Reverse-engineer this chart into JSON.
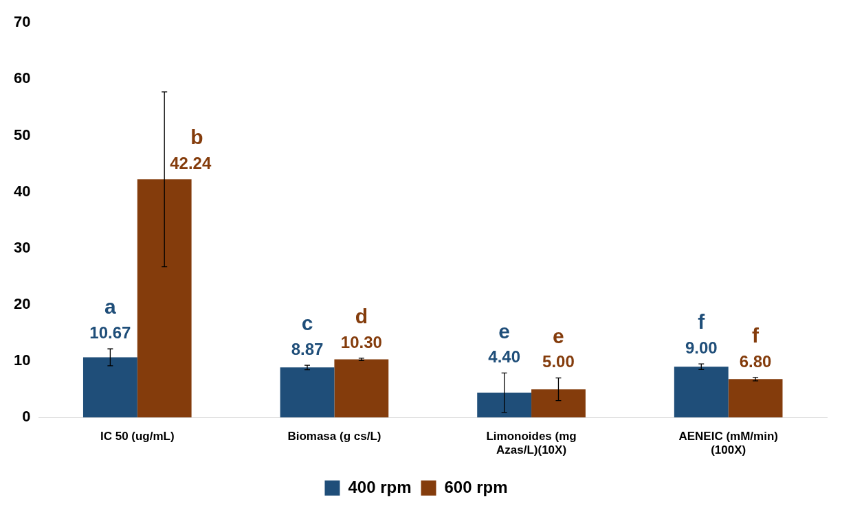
{
  "chart_data": {
    "type": "bar",
    "categories": [
      "IC 50 (ug/mL)",
      "Biomasa (g cs/L)",
      "Limonoides (mg Azas/L)(10X)",
      "AENEIC (mM/min) (100X)"
    ],
    "series": [
      {
        "name": "400 rpm",
        "color": "#1f4e79",
        "values": [
          10.67,
          8.87,
          4.4,
          9.0
        ],
        "errors": [
          1.5,
          0.4,
          3.5,
          0.5
        ],
        "value_labels": [
          "10.67",
          "8.87",
          "4.40",
          "9.00"
        ]
      },
      {
        "name": "600 rpm",
        "color": "#843c0c",
        "values": [
          42.24,
          10.3,
          5.0,
          6.8
        ],
        "errors": [
          15.5,
          0.2,
          2.0,
          0.3
        ],
        "value_labels": [
          "42.24",
          "10.30",
          "5.00",
          "6.80"
        ]
      }
    ],
    "annotations": [
      {
        "text": "a",
        "x": "IC 50 (ug/mL)",
        "y": 10.67
      },
      {
        "text": "b",
        "x": "IC 50 (ug/mL)",
        "y": 42.24
      },
      {
        "text": "c",
        "x": "Biomasa (g cs/L)",
        "y": 8.87
      },
      {
        "text": "d",
        "x": "Biomasa (g cs/L)",
        "y": 10.3
      },
      {
        "text": "e",
        "x": "Limonoides (mg Azas/L)(10X)",
        "y": 4.4
      },
      {
        "text": "e",
        "x": "Limonoides (mg Azas/L)(10X)",
        "y": 5.0
      },
      {
        "text": "f",
        "x": "AENEIC (mM/min) (100X)",
        "y": 9.0
      },
      {
        "text": "f",
        "x": "AENEIC (mM/min) (100X)",
        "y": 6.8
      }
    ],
    "ylim": [
      0,
      70
    ],
    "yticks": [
      0,
      10,
      20,
      30,
      40,
      50,
      60,
      70
    ],
    "grid": false,
    "legend": "bottom"
  }
}
